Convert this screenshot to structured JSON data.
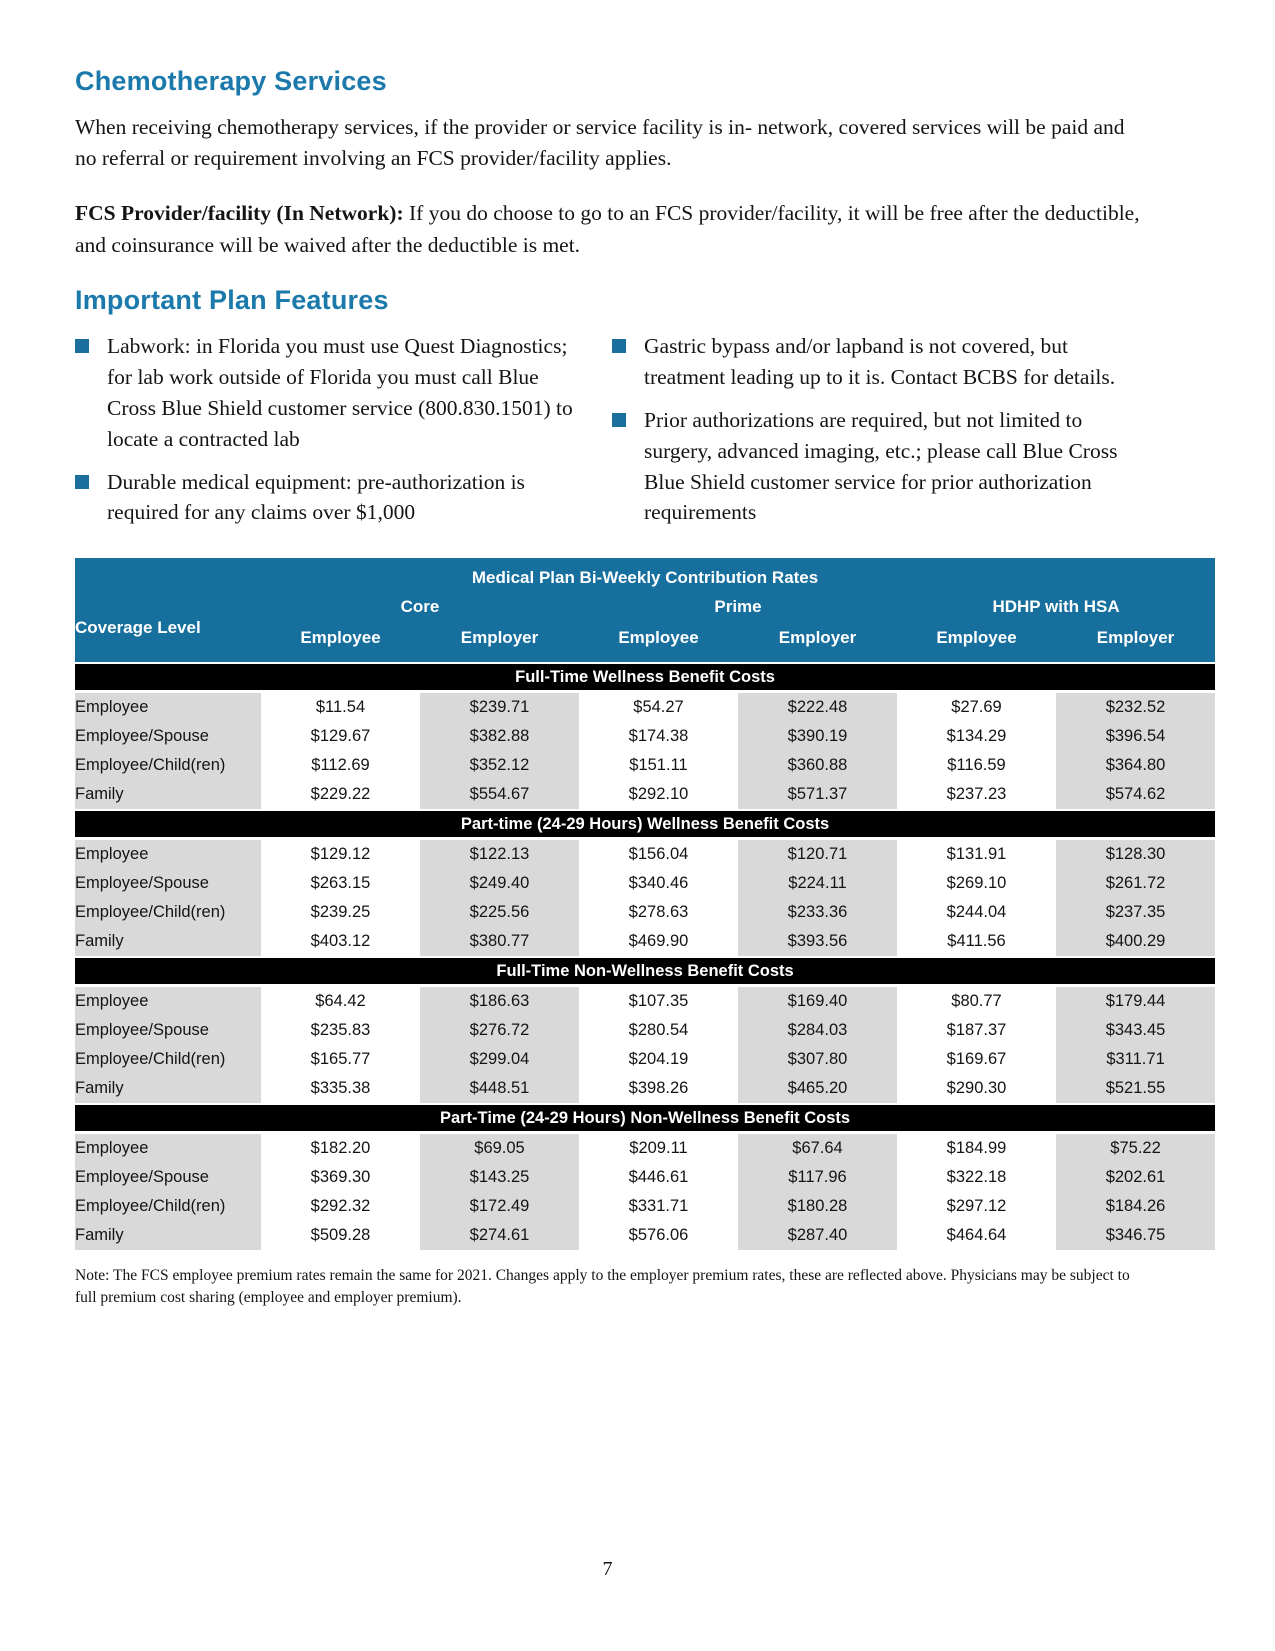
{
  "page": {
    "number": "7"
  },
  "sections": {
    "chemo": {
      "heading": "Chemotherapy Services",
      "para1": "When receiving chemotherapy services, if the provider or service facility is in- network, covered services will be paid and no referral or requirement involving an FCS provider/facility applies.",
      "para2_bold": "FCS Provider/facility (In Network):",
      "para2_rest": " If you do choose to go to an FCS provider/facility, it will be free after the deductible, and coinsurance will be waived after the deductible is met."
    },
    "features": {
      "heading": "Important Plan Features",
      "bullets_left": [
        "Labwork: in Florida you must use Quest Diagnostics; for lab work outside of Florida you must call Blue Cross Blue Shield customer service (800.830.1501) to locate a contracted lab",
        "Durable medical equipment: pre-authorization is required for any claims over $1,000"
      ],
      "bullets_right": [
        "Gastric bypass and/or lapband is not covered, but treatment leading up to it is. Contact BCBS for details.",
        "Prior authorizations are required, but not limited to surgery, advanced imaging, etc.; please call Blue Cross Blue Shield customer service for prior authorization requirements"
      ]
    }
  },
  "table": {
    "title": "Medical Plan Bi-Weekly Contribution Rates",
    "coverage_label": "Coverage Level",
    "plan_groups": [
      "Core",
      "Prime",
      "HDHP with HSA"
    ],
    "sub_headers": [
      "Employee",
      "Employer",
      "Employee",
      "Employer",
      "Employee",
      "Employer"
    ],
    "sections": [
      {
        "title": "Full-Time Wellness Benefit Costs",
        "rows": [
          {
            "label": "Employee",
            "values": [
              "$11.54",
              "$239.71",
              "$54.27",
              "$222.48",
              "$27.69",
              "$232.52"
            ]
          },
          {
            "label": "Employee/Spouse",
            "values": [
              "$129.67",
              "$382.88",
              "$174.38",
              "$390.19",
              "$134.29",
              "$396.54"
            ]
          },
          {
            "label": "Employee/Child(ren)",
            "values": [
              "$112.69",
              "$352.12",
              "$151.11",
              "$360.88",
              "$116.59",
              "$364.80"
            ]
          },
          {
            "label": "Family",
            "values": [
              "$229.22",
              "$554.67",
              "$292.10",
              "$571.37",
              "$237.23",
              "$574.62"
            ]
          }
        ]
      },
      {
        "title": "Part-time (24-29 Hours) Wellness Benefit Costs",
        "rows": [
          {
            "label": "Employee",
            "values": [
              "$129.12",
              "$122.13",
              "$156.04",
              "$120.71",
              "$131.91",
              "$128.30"
            ]
          },
          {
            "label": "Employee/Spouse",
            "values": [
              "$263.15",
              "$249.40",
              "$340.46",
              "$224.11",
              "$269.10",
              "$261.72"
            ]
          },
          {
            "label": "Employee/Child(ren)",
            "values": [
              "$239.25",
              "$225.56",
              "$278.63",
              "$233.36",
              "$244.04",
              "$237.35"
            ]
          },
          {
            "label": "Family",
            "values": [
              "$403.12",
              "$380.77",
              "$469.90",
              "$393.56",
              "$411.56",
              "$400.29"
            ]
          }
        ]
      },
      {
        "title": "Full-Time Non-Wellness Benefit Costs",
        "rows": [
          {
            "label": "Employee",
            "values": [
              "$64.42",
              "$186.63",
              "$107.35",
              "$169.40",
              "$80.77",
              "$179.44"
            ]
          },
          {
            "label": "Employee/Spouse",
            "values": [
              "$235.83",
              "$276.72",
              "$280.54",
              "$284.03",
              "$187.37",
              "$343.45"
            ]
          },
          {
            "label": "Employee/Child(ren)",
            "values": [
              "$165.77",
              "$299.04",
              "$204.19",
              "$307.80",
              "$169.67",
              "$311.71"
            ]
          },
          {
            "label": "Family",
            "values": [
              "$335.38",
              "$448.51",
              "$398.26",
              "$465.20",
              "$290.30",
              "$521.55"
            ]
          }
        ]
      },
      {
        "title": "Part-Time (24-29 Hours) Non-Wellness Benefit Costs",
        "rows": [
          {
            "label": "Employee",
            "values": [
              "$182.20",
              "$69.05",
              "$209.11",
              "$67.64",
              "$184.99",
              "$75.22"
            ]
          },
          {
            "label": "Employee/Spouse",
            "values": [
              "$369.30",
              "$143.25",
              "$446.61",
              "$117.96",
              "$322.18",
              "$202.61"
            ]
          },
          {
            "label": "Employee/Child(ren)",
            "values": [
              "$292.32",
              "$172.49",
              "$331.71",
              "$180.28",
              "$297.12",
              "$184.26"
            ]
          },
          {
            "label": "Family",
            "values": [
              "$509.28",
              "$274.61",
              "$576.06",
              "$287.40",
              "$464.64",
              "$346.75"
            ]
          }
        ]
      }
    ]
  },
  "note": "Note: The FCS employee premium rates remain the same for 2021. Changes apply to the employer premium rates, these are reflected above. Physicians may be subject to full premium cost sharing (employee and employer premium).",
  "colors": {
    "heading_blue": "#1b79ab",
    "table_header_blue": "#166f9d",
    "bullet_blue": "#1a6f9e",
    "cell_gray": "#d9d9d9",
    "section_bar_black": "#000000"
  }
}
